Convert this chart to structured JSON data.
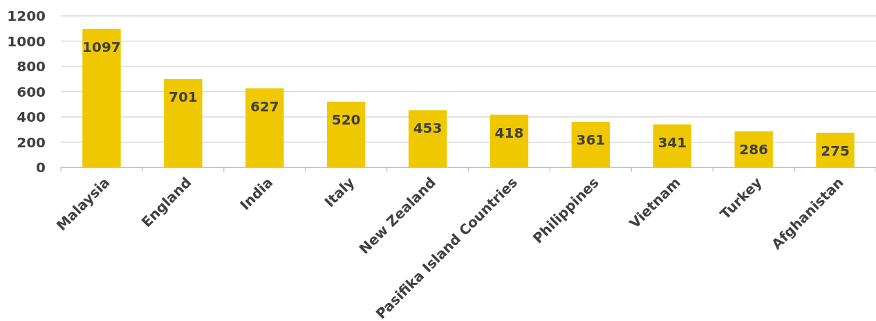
{
  "chart_data": {
    "type": "bar",
    "categories": [
      "Malaysia",
      "England",
      "India",
      "Italy",
      "New Zealand",
      "Pasifika Island Countries",
      "Philippines",
      "Vietnam",
      "Turkey",
      "Afghanistan"
    ],
    "values": [
      1097,
      701,
      627,
      520,
      453,
      418,
      361,
      341,
      286,
      275
    ],
    "color": "#f0c800",
    "ylim": [
      0,
      1200
    ],
    "yticks": [
      0,
      200,
      400,
      600,
      800,
      1000,
      1200
    ],
    "grid": "y",
    "data_labels": true
  }
}
